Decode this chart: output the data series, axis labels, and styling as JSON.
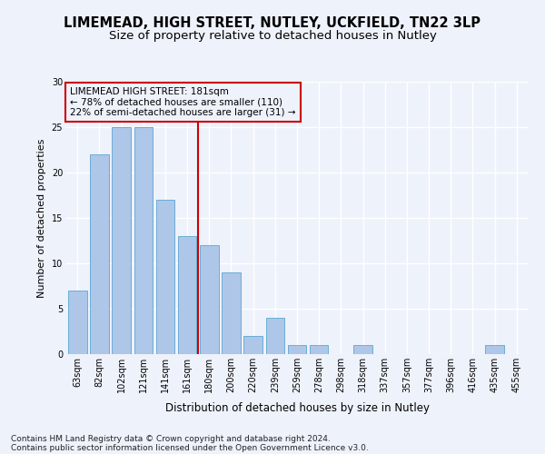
{
  "title1": "LIMEMEAD, HIGH STREET, NUTLEY, UCKFIELD, TN22 3LP",
  "title2": "Size of property relative to detached houses in Nutley",
  "xlabel": "Distribution of detached houses by size in Nutley",
  "ylabel": "Number of detached properties",
  "categories": [
    "63sqm",
    "82sqm",
    "102sqm",
    "121sqm",
    "141sqm",
    "161sqm",
    "180sqm",
    "200sqm",
    "220sqm",
    "239sqm",
    "259sqm",
    "278sqm",
    "298sqm",
    "318sqm",
    "337sqm",
    "357sqm",
    "377sqm",
    "396sqm",
    "416sqm",
    "435sqm",
    "455sqm"
  ],
  "values": [
    7,
    22,
    25,
    25,
    17,
    13,
    12,
    9,
    2,
    4,
    1,
    1,
    0,
    1,
    0,
    0,
    0,
    0,
    0,
    1,
    0
  ],
  "bar_color": "#aec6e8",
  "bar_edge_color": "#6aaed6",
  "property_line_color": "#cc0000",
  "annotation_box_text": "LIMEMEAD HIGH STREET: 181sqm\n← 78% of detached houses are smaller (110)\n22% of semi-detached houses are larger (31) →",
  "annotation_box_color": "#cc0000",
  "ylim": [
    0,
    30
  ],
  "yticks": [
    0,
    5,
    10,
    15,
    20,
    25,
    30
  ],
  "footer1": "Contains HM Land Registry data © Crown copyright and database right 2024.",
  "footer2": "Contains public sector information licensed under the Open Government Licence v3.0.",
  "bg_color": "#eef2fb",
  "grid_color": "#ffffff",
  "title1_fontsize": 10.5,
  "title2_fontsize": 9.5,
  "xlabel_fontsize": 8.5,
  "ylabel_fontsize": 8,
  "tick_fontsize": 7,
  "footer_fontsize": 6.5,
  "annot_fontsize": 7.5
}
